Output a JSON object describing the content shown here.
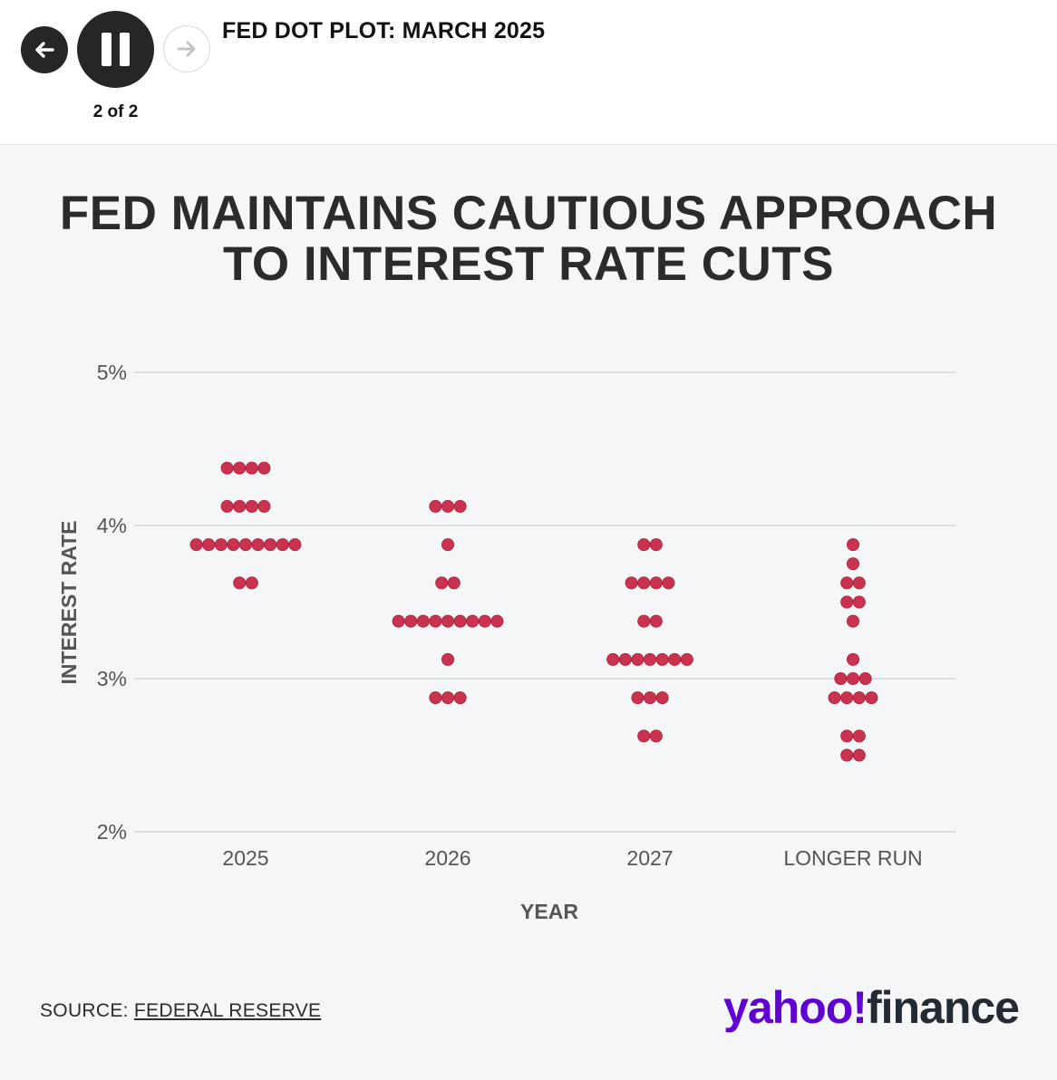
{
  "header": {
    "slide_title": "FED DOT PLOT: MARCH 2025",
    "slide_counter": "2 of 2",
    "icons": {
      "prev": "arrow-left-icon",
      "pause": "pause-icon",
      "next": "arrow-right-icon"
    }
  },
  "chart_data": {
    "type": "scatter",
    "title": [
      "FED MAINTAINS CAUTIOUS APPROACH",
      "TO INTEREST RATE CUTS"
    ],
    "xlabel": "YEAR",
    "ylabel": "INTEREST RATE",
    "categories": [
      "2025",
      "2026",
      "2027",
      "LONGER RUN"
    ],
    "y_ticks": [
      "2%",
      "3%",
      "4%",
      "5%"
    ],
    "y_tick_values": [
      2,
      3,
      4,
      5
    ],
    "ylim": [
      2,
      5
    ],
    "grid": true,
    "dot_color": "#c9334f",
    "points": [
      {
        "category": "2025",
        "values": [
          4.375,
          4.375,
          4.375,
          4.375,
          4.125,
          4.125,
          4.125,
          4.125,
          3.875,
          3.875,
          3.875,
          3.875,
          3.875,
          3.875,
          3.875,
          3.875,
          3.875,
          3.625,
          3.625
        ]
      },
      {
        "category": "2026",
        "values": [
          4.125,
          4.125,
          4.125,
          3.875,
          3.625,
          3.625,
          3.375,
          3.375,
          3.375,
          3.375,
          3.375,
          3.375,
          3.375,
          3.375,
          3.375,
          3.125,
          2.875,
          2.875,
          2.875
        ]
      },
      {
        "category": "2027",
        "values": [
          3.875,
          3.875,
          3.625,
          3.625,
          3.625,
          3.625,
          3.375,
          3.375,
          3.125,
          3.125,
          3.125,
          3.125,
          3.125,
          3.125,
          3.125,
          2.875,
          2.875,
          2.875,
          2.625,
          2.625
        ]
      },
      {
        "category": "LONGER RUN",
        "values": [
          3.875,
          3.75,
          3.625,
          3.625,
          3.5,
          3.5,
          3.375,
          3.125,
          3.0,
          3.0,
          3.0,
          2.875,
          2.875,
          2.875,
          2.875,
          2.625,
          2.625,
          2.5,
          2.5
        ]
      }
    ]
  },
  "footer": {
    "source_prefix": "SOURCE: ",
    "source_link": "FEDERAL RESERVE",
    "logo_yahoo": "yahoo!",
    "logo_finance": "finance"
  }
}
